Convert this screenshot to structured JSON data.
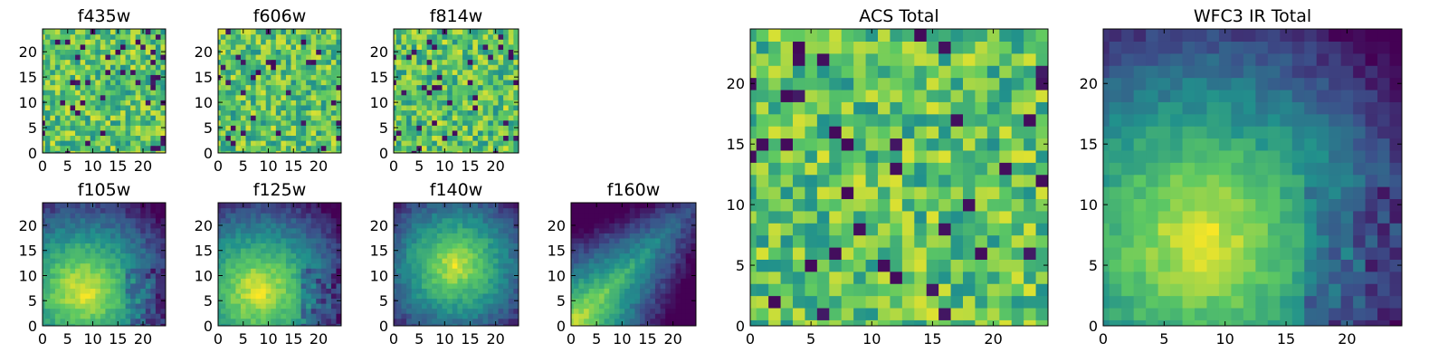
{
  "chart_data": [
    {
      "type": "heatmap",
      "title": "f435w",
      "xticks": [
        "0",
        "5",
        "10",
        "15",
        "20"
      ],
      "yticks": [
        "0",
        "5",
        "10",
        "15",
        "20"
      ],
      "xlim": [
        0,
        25
      ],
      "ylim": [
        0,
        25
      ],
      "colormap": "viridis",
      "pattern": "noise"
    },
    {
      "type": "heatmap",
      "title": "f606w",
      "xticks": [
        "0",
        "5",
        "10",
        "15",
        "20"
      ],
      "yticks": [
        "0",
        "5",
        "10",
        "15",
        "20"
      ],
      "xlim": [
        0,
        25
      ],
      "ylim": [
        0,
        25
      ],
      "colormap": "viridis",
      "pattern": "noise"
    },
    {
      "type": "heatmap",
      "title": "f814w",
      "xticks": [
        "0",
        "5",
        "10",
        "15",
        "20"
      ],
      "yticks": [
        "0",
        "5",
        "10",
        "15",
        "20"
      ],
      "xlim": [
        0,
        25
      ],
      "ylim": [
        0,
        25
      ],
      "colormap": "viridis",
      "pattern": "noise"
    },
    {
      "type": "heatmap",
      "title": "f105w",
      "xticks": [
        "0",
        "5",
        "10",
        "15",
        "20"
      ],
      "yticks": [
        "0",
        "5",
        "10",
        "15",
        "20"
      ],
      "xlim": [
        0,
        25
      ],
      "ylim": [
        0,
        25
      ],
      "colormap": "viridis",
      "pattern": "smooth-bright-lower-left"
    },
    {
      "type": "heatmap",
      "title": "f125w",
      "xticks": [
        "0",
        "5",
        "10",
        "15",
        "20"
      ],
      "yticks": [
        "0",
        "5",
        "10",
        "15",
        "20"
      ],
      "xlim": [
        0,
        25
      ],
      "ylim": [
        0,
        25
      ],
      "colormap": "viridis",
      "pattern": "smooth-bright-lower-left"
    },
    {
      "type": "heatmap",
      "title": "f140w",
      "xticks": [
        "0",
        "5",
        "10",
        "15",
        "20"
      ],
      "yticks": [
        "0",
        "5",
        "10",
        "15",
        "20"
      ],
      "xlim": [
        0,
        25
      ],
      "ylim": [
        0,
        25
      ],
      "colormap": "viridis",
      "pattern": "smooth-bright-center"
    },
    {
      "type": "heatmap",
      "title": "f160w",
      "xticks": [
        "0",
        "5",
        "10",
        "15",
        "20"
      ],
      "yticks": [
        "0",
        "5",
        "10",
        "15",
        "20"
      ],
      "xlim": [
        0,
        25
      ],
      "ylim": [
        0,
        25
      ],
      "colormap": "viridis",
      "pattern": "diagonal-bright-lower-left"
    },
    {
      "type": "heatmap",
      "title": "ACS Total",
      "xticks": [
        "0",
        "5",
        "10",
        "15",
        "20"
      ],
      "yticks": [
        "0",
        "5",
        "10",
        "15",
        "20"
      ],
      "xlim": [
        0,
        25
      ],
      "ylim": [
        0,
        25
      ],
      "colormap": "viridis",
      "pattern": "noise"
    },
    {
      "type": "heatmap",
      "title": "WFC3 IR Total",
      "xticks": [
        "0",
        "5",
        "10",
        "15",
        "20"
      ],
      "yticks": [
        "0",
        "5",
        "10",
        "15",
        "20"
      ],
      "xlim": [
        0,
        25
      ],
      "ylim": [
        0,
        25
      ],
      "colormap": "viridis",
      "pattern": "smooth-bright-lower-left"
    }
  ],
  "colors": {
    "viridis": [
      "#440154",
      "#3b528b",
      "#21918c",
      "#5ec962",
      "#fde725"
    ],
    "axis_frame": "#000000",
    "background": "#ffffff"
  }
}
